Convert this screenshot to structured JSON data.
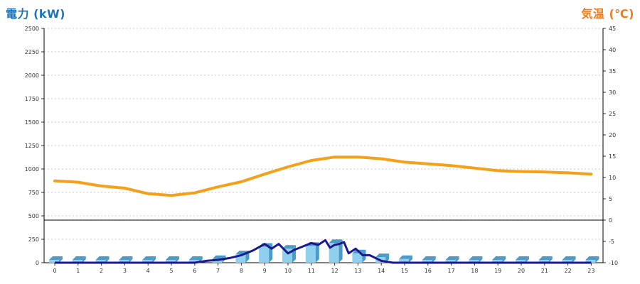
{
  "chart_data": {
    "type": "bar",
    "title": "",
    "y_left_label": "電力 (kW)",
    "y_right_label": "気温 (℃)",
    "y_left_ticks": [
      "2500",
      "2250",
      "2000",
      "1750",
      "1500",
      "1250",
      "1000",
      "750",
      "500",
      "250",
      "0"
    ],
    "y_right_ticks": [
      "45",
      "40",
      "35",
      "30",
      "25",
      "20",
      "15",
      "10",
      "5",
      "0",
      "-5",
      "-10"
    ],
    "y_left_range": [
      0,
      2500
    ],
    "y_right_range": [
      -10,
      45
    ],
    "x_ticks": [
      "0",
      "1",
      "2",
      "3",
      "4",
      "5",
      "6",
      "7",
      "8",
      "9",
      "10",
      "11",
      "12",
      "13",
      "14",
      "15",
      "16",
      "17",
      "18",
      "19",
      "20",
      "21",
      "22",
      "23"
    ],
    "grid": true,
    "colors": {
      "power_bar": "#8fd0ee",
      "power_bar_side": "#4a9bc9",
      "power_line": "#1a1a8c",
      "temperature": "#f5a01a",
      "left_title": "#1e73b8",
      "right_title": "#f07a1a"
    },
    "series": [
      {
        "type": "bar",
        "axis": "left",
        "categories": [
          0,
          1,
          2,
          3,
          4,
          5,
          6,
          7,
          8,
          9,
          10,
          11,
          12,
          13,
          14,
          15,
          16,
          17,
          18,
          19,
          20,
          21,
          22,
          23
        ],
        "values": [
          30,
          30,
          30,
          30,
          30,
          30,
          30,
          40,
          90,
          170,
          150,
          180,
          210,
          100,
          60,
          40,
          30,
          30,
          30,
          30,
          30,
          30,
          30,
          30
        ]
      },
      {
        "type": "line",
        "axis": "left",
        "x": [
          0,
          1,
          2,
          3,
          4,
          5,
          6,
          6.5,
          7,
          7.5,
          8,
          8.5,
          9,
          9.3,
          9.6,
          10,
          10.3,
          10.6,
          11,
          11.3,
          11.6,
          11.8,
          12,
          12.2,
          12.4,
          12.6,
          12.9,
          13.2,
          13.5,
          14,
          14.5,
          15,
          15.5,
          16,
          17,
          18,
          19,
          20,
          21,
          22,
          23
        ],
        "values": [
          0,
          0,
          0,
          0,
          0,
          0,
          0,
          20,
          30,
          50,
          80,
          130,
          200,
          150,
          200,
          100,
          140,
          170,
          210,
          190,
          240,
          160,
          190,
          200,
          220,
          100,
          150,
          80,
          80,
          20,
          0,
          0,
          0,
          0,
          0,
          0,
          0,
          0,
          0,
          0,
          0
        ]
      },
      {
        "type": "line",
        "axis": "right",
        "x": [
          0,
          1,
          2,
          3,
          4,
          5,
          6,
          7,
          8,
          9,
          10,
          11,
          12,
          13,
          14,
          15,
          16,
          17,
          18,
          19,
          20,
          21,
          22,
          23
        ],
        "values": [
          9.2,
          8.9,
          8.0,
          7.5,
          6.2,
          5.8,
          6.4,
          7.8,
          9.0,
          10.8,
          12.5,
          14.0,
          14.8,
          14.8,
          14.4,
          13.6,
          13.2,
          12.8,
          12.2,
          11.6,
          11.4,
          11.3,
          11.1,
          10.8
        ]
      }
    ]
  }
}
